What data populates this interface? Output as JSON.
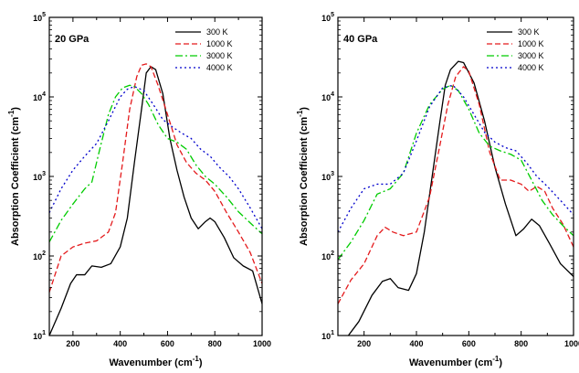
{
  "chart_data": [
    {
      "type": "line",
      "panel_label": "20 GPa",
      "xlabel_main": "Wavenumber (cm",
      "xlabel_sup": "-1",
      "xlabel_end": ")",
      "ylabel_main": "Absorption Coefficient (cm",
      "ylabel_sup": "-1",
      "ylabel_end": ")",
      "xlim": [
        100,
        1000
      ],
      "ylim": [
        10,
        100000
      ],
      "y_scale": "log",
      "x_ticks": [
        200,
        400,
        600,
        800,
        1000
      ],
      "x_tick_labels": [
        "200",
        "400",
        "600",
        "800",
        "1000"
      ],
      "y_ticks": [
        {
          "base": "10",
          "exp": "1",
          "value": 10
        },
        {
          "base": "10",
          "exp": "2",
          "value": 100
        },
        {
          "base": "10",
          "exp": "3",
          "value": 1000
        },
        {
          "base": "10",
          "exp": "4",
          "value": 10000
        },
        {
          "base": "10",
          "exp": "5",
          "value": 100000
        }
      ],
      "legend_position": "top-right",
      "series": [
        {
          "name": "300 K",
          "color": "#000000",
          "dash": "solid",
          "x": [
            100,
            150,
            190,
            215,
            250,
            280,
            320,
            360,
            400,
            430,
            460,
            490,
            510,
            530,
            550,
            580,
            610,
            640,
            670,
            700,
            730,
            760,
            780,
            800,
            840,
            880,
            920,
            960,
            1000
          ],
          "y": [
            10,
            22,
            45,
            58,
            58,
            75,
            72,
            80,
            130,
            300,
            1500,
            7000,
            20000,
            24000,
            22000,
            11000,
            3000,
            1200,
            550,
            300,
            220,
            270,
            300,
            270,
            170,
            95,
            75,
            65,
            25
          ]
        },
        {
          "name": "1000 K",
          "color": "#e41a1c",
          "dash": "dashed",
          "x": [
            100,
            150,
            200,
            250,
            300,
            350,
            380,
            410,
            440,
            470,
            490,
            510,
            530,
            560,
            600,
            640,
            680,
            720,
            760,
            800,
            850,
            900,
            950,
            1000
          ],
          "y": [
            35,
            100,
            130,
            145,
            155,
            200,
            350,
            1500,
            7000,
            18000,
            25000,
            26000,
            24000,
            14000,
            6000,
            2500,
            1500,
            1100,
            900,
            650,
            350,
            200,
            110,
            45
          ]
        },
        {
          "name": "3000 K",
          "color": "#00cc00",
          "dash": "dashdot",
          "x": [
            100,
            150,
            200,
            250,
            280,
            310,
            350,
            380,
            410,
            440,
            460,
            490,
            520,
            560,
            600,
            640,
            680,
            720,
            760,
            800,
            850,
            900,
            950,
            1000
          ],
          "y": [
            150,
            280,
            450,
            700,
            850,
            2000,
            6000,
            10000,
            13000,
            14000,
            13500,
            11000,
            8000,
            4500,
            3000,
            2700,
            2200,
            1400,
            1000,
            800,
            550,
            360,
            260,
            190
          ]
        },
        {
          "name": "4000 K",
          "color": "#0000cc",
          "dash": "dotted",
          "x": [
            100,
            150,
            200,
            250,
            300,
            350,
            400,
            430,
            460,
            500,
            540,
            580,
            620,
            660,
            700,
            740,
            780,
            820,
            860,
            900,
            950,
            1000
          ],
          "y": [
            350,
            700,
            1200,
            1800,
            2600,
            5000,
            10000,
            12500,
            13500,
            12000,
            8000,
            5200,
            4200,
            3500,
            3000,
            2200,
            1800,
            1300,
            1000,
            700,
            400,
            220
          ]
        }
      ]
    },
    {
      "type": "line",
      "panel_label": "40 GPa",
      "xlabel_main": "Wavenumber (cm",
      "xlabel_sup": "-1",
      "xlabel_end": ")",
      "ylabel_main": "Absorption Coefficient (cm",
      "ylabel_sup": "-1",
      "ylabel_end": ")",
      "xlim": [
        100,
        1000
      ],
      "ylim": [
        10,
        100000
      ],
      "y_scale": "log",
      "x_ticks": [
        200,
        400,
        600,
        800,
        1000
      ],
      "x_tick_labels": [
        "200",
        "400",
        "600",
        "800",
        "1000"
      ],
      "y_ticks": [
        {
          "base": "10",
          "exp": "1",
          "value": 10
        },
        {
          "base": "10",
          "exp": "2",
          "value": 100
        },
        {
          "base": "10",
          "exp": "3",
          "value": 1000
        },
        {
          "base": "10",
          "exp": "4",
          "value": 10000
        },
        {
          "base": "10",
          "exp": "5",
          "value": 100000
        }
      ],
      "legend_position": "top-right",
      "series": [
        {
          "name": "300 K",
          "color": "#000000",
          "dash": "solid",
          "x": [
            140,
            180,
            230,
            270,
            300,
            330,
            370,
            400,
            430,
            460,
            490,
            510,
            530,
            560,
            580,
            620,
            660,
            700,
            740,
            780,
            810,
            840,
            870,
            910,
            950,
            1000
          ],
          "y": [
            10,
            15,
            32,
            48,
            52,
            40,
            37,
            60,
            200,
            1000,
            5000,
            14000,
            22000,
            28000,
            27000,
            15000,
            5000,
            1300,
            450,
            180,
            220,
            290,
            240,
            140,
            80,
            55
          ]
        },
        {
          "name": "1000 K",
          "color": "#e41a1c",
          "dash": "dashed",
          "x": [
            100,
            150,
            200,
            250,
            280,
            310,
            350,
            400,
            450,
            490,
            520,
            550,
            580,
            600,
            640,
            680,
            720,
            760,
            800,
            830,
            860,
            890,
            920,
            960,
            1000
          ],
          "y": [
            25,
            50,
            80,
            180,
            230,
            200,
            180,
            200,
            550,
            2500,
            8000,
            18000,
            24000,
            21000,
            8000,
            2000,
            900,
            900,
            800,
            650,
            750,
            650,
            400,
            250,
            130
          ]
        },
        {
          "name": "3000 K",
          "color": "#00cc00",
          "dash": "dashdot",
          "x": [
            100,
            150,
            200,
            250,
            300,
            350,
            400,
            450,
            500,
            530,
            560,
            600,
            640,
            680,
            720,
            760,
            800,
            840,
            880,
            920,
            960,
            1000
          ],
          "y": [
            90,
            150,
            280,
            600,
            700,
            1100,
            3500,
            8000,
            12500,
            14000,
            12000,
            7000,
            3500,
            2400,
            2100,
            1900,
            1600,
            900,
            500,
            330,
            240,
            180
          ]
        },
        {
          "name": "4000 K",
          "color": "#0000cc",
          "dash": "dotted",
          "x": [
            100,
            150,
            200,
            250,
            300,
            350,
            400,
            450,
            500,
            540,
            580,
            620,
            660,
            700,
            740,
            780,
            820,
            860,
            900,
            950,
            1000
          ],
          "y": [
            200,
            400,
            700,
            800,
            800,
            1100,
            2800,
            7500,
            13000,
            14000,
            10000,
            6000,
            3600,
            2700,
            2300,
            2100,
            1500,
            1000,
            750,
            500,
            330
          ]
        }
      ]
    }
  ]
}
